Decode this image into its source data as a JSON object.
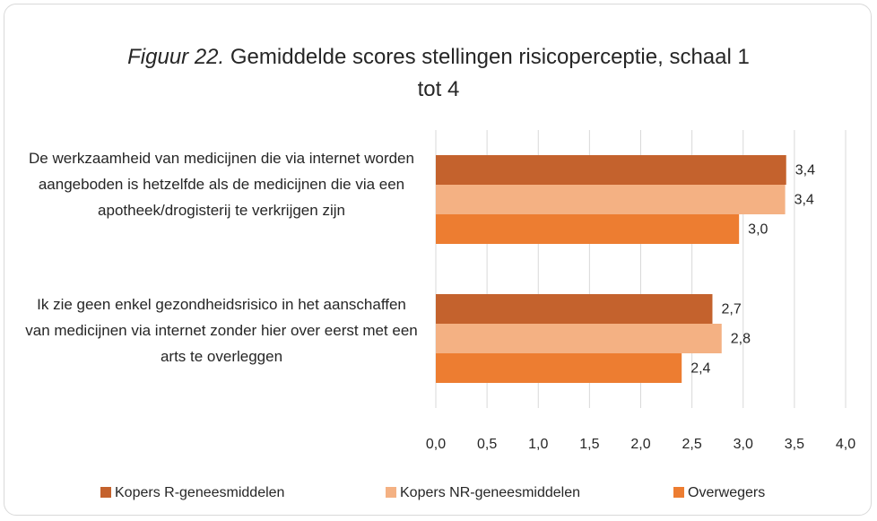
{
  "chart_data": {
    "type": "barh",
    "title_label": "Figuur 22.",
    "title": "Gemiddelde scores stellingen risicoperceptie, schaal 1 tot 4",
    "categories": [
      "De werkzaamheid van medicijnen die via internet worden aangeboden is hetzelfde als de medicijnen die via een apotheek/drogisterij te verkrijgen zijn",
      "Ik zie geen enkel gezondheidsrisico in het aanschaffen van medicijnen via internet zonder hier over eerst met een arts te overleggen"
    ],
    "series": [
      {
        "name": "Kopers R-geneesmiddelen",
        "color": "#c4622d",
        "values": [
          3.42,
          2.7
        ],
        "value_labels": [
          "3,4",
          "2,7"
        ]
      },
      {
        "name": "Kopers NR-geneesmiddelen",
        "color": "#f4b183",
        "values": [
          3.41,
          2.79
        ],
        "value_labels": [
          "3,4",
          "2,8"
        ]
      },
      {
        "name": "Overwegers",
        "color": "#ed7d31",
        "values": [
          2.96,
          2.4
        ],
        "value_labels": [
          "3,0",
          "2,4"
        ]
      }
    ],
    "xlim": [
      0,
      4
    ],
    "xticks": [
      {
        "value": 0,
        "label": "0,0"
      },
      {
        "value": 0.5,
        "label": "0,5"
      },
      {
        "value": 1,
        "label": "1,0"
      },
      {
        "value": 1.5,
        "label": "1,5"
      },
      {
        "value": 2,
        "label": "2,0"
      },
      {
        "value": 2.5,
        "label": "2,5"
      },
      {
        "value": 3,
        "label": "3,0"
      },
      {
        "value": 3.5,
        "label": "3,5"
      },
      {
        "value": 4,
        "label": "4,0"
      }
    ],
    "grid": true,
    "legend": "bottom"
  }
}
